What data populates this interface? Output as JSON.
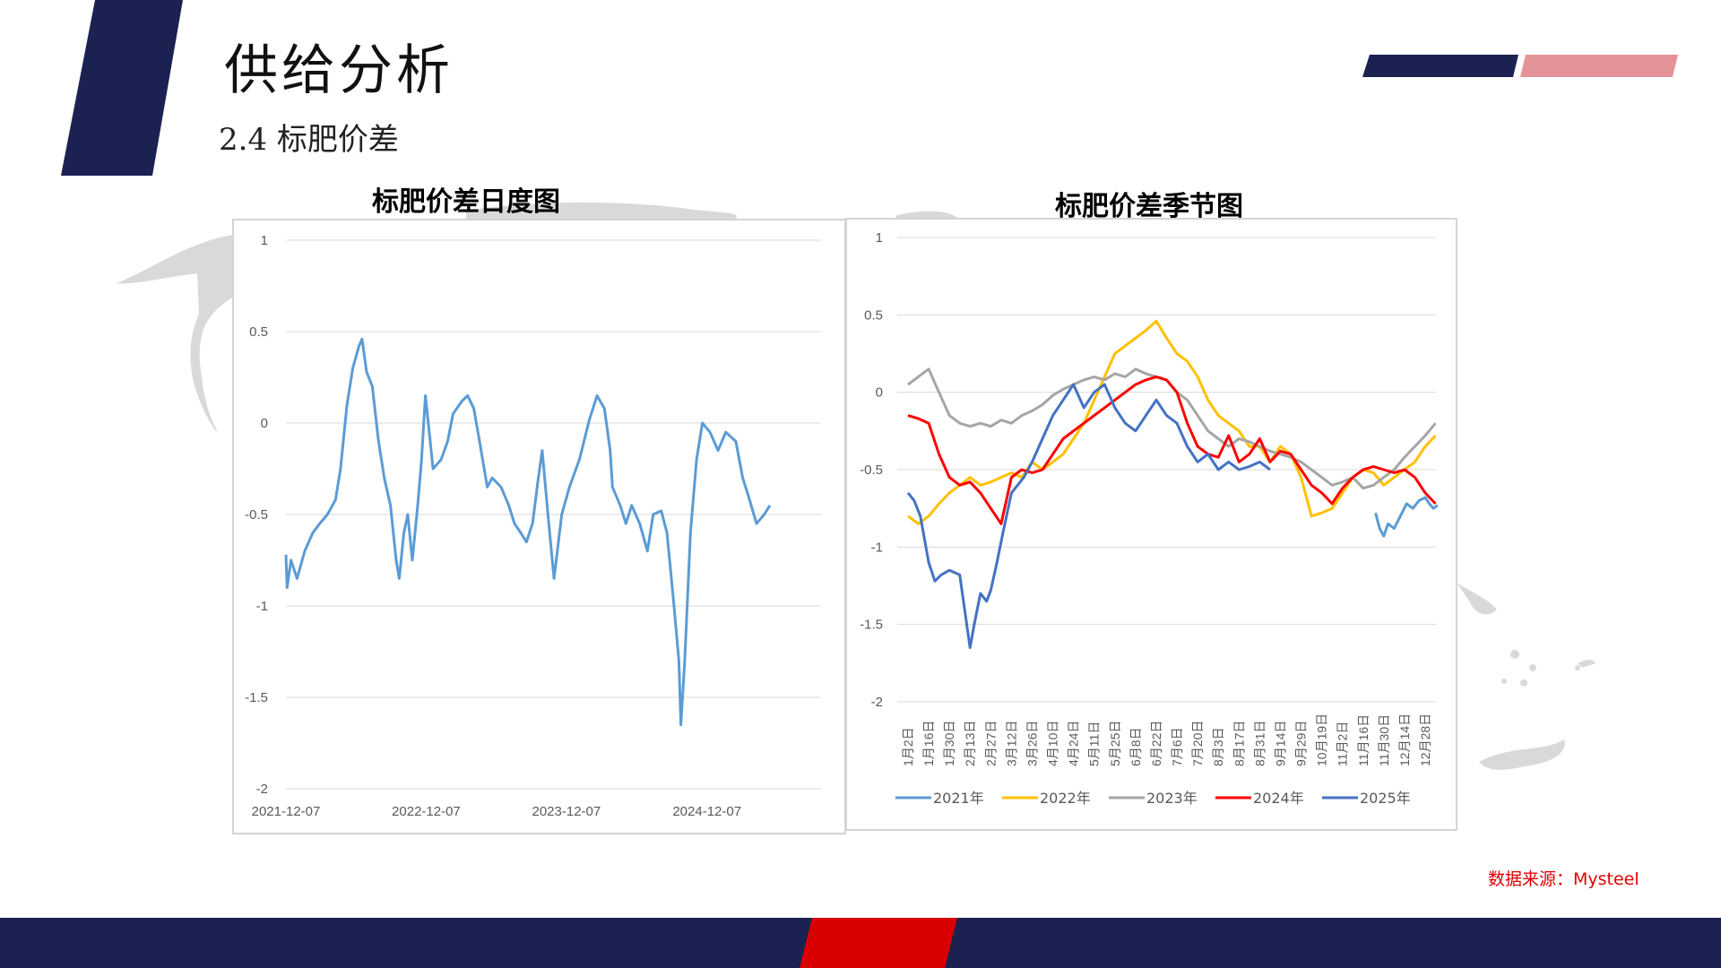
{
  "header": {
    "title": "供给分析",
    "subtitle": "2.4 标肥价差"
  },
  "source": "数据来源：Mysteel",
  "colors": {
    "navy": "#1b2150",
    "pink": "#e49498",
    "red_bar": "#d80000",
    "daily_line": "#5b9bd5",
    "series": [
      "#5b9bd5",
      "#ffc000",
      "#a5a5a5",
      "#ff0000",
      "#4472c4"
    ]
  },
  "chart_data": [
    {
      "type": "line",
      "title": "标肥价差日度图",
      "ylim": [
        -2,
        1
      ],
      "yticks": [
        1,
        0.5,
        0,
        -0.5,
        -1,
        -1.5,
        -2
      ],
      "ytick_labels": [
        "1",
        "0.5",
        "0",
        "-0.5",
        "-1",
        "-1.5",
        "-2"
      ],
      "xlim": [
        "2021-12-07",
        "2025-09-30"
      ],
      "xticks": [
        "2021-12-07",
        "2022-12-07",
        "2023-12-07",
        "2024-12-07"
      ],
      "grid": true,
      "series": [
        {
          "color": "#5b9bd5",
          "points": [
            [
              "2021-12-07",
              -0.72
            ],
            [
              "2021-12-10",
              -0.9
            ],
            [
              "2021-12-20",
              -0.75
            ],
            [
              "2022-01-05",
              -0.85
            ],
            [
              "2022-01-25",
              -0.7
            ],
            [
              "2022-02-15",
              -0.6
            ],
            [
              "2022-03-05",
              -0.55
            ],
            [
              "2022-03-25",
              -0.5
            ],
            [
              "2022-04-15",
              -0.42
            ],
            [
              "2022-04-28",
              -0.25
            ],
            [
              "2022-05-15",
              0.1
            ],
            [
              "2022-05-30",
              0.3
            ],
            [
              "2022-06-15",
              0.42
            ],
            [
              "2022-06-23",
              0.46
            ],
            [
              "2022-07-05",
              0.28
            ],
            [
              "2022-07-20",
              0.2
            ],
            [
              "2022-08-05",
              -0.1
            ],
            [
              "2022-08-20",
              -0.3
            ],
            [
              "2022-09-05",
              -0.45
            ],
            [
              "2022-09-20",
              -0.75
            ],
            [
              "2022-09-28",
              -0.85
            ],
            [
              "2022-10-10",
              -0.6
            ],
            [
              "2022-10-20",
              -0.5
            ],
            [
              "2022-11-01",
              -0.75
            ],
            [
              "2022-11-15",
              -0.45
            ],
            [
              "2022-11-25",
              -0.2
            ],
            [
              "2022-12-05",
              0.15
            ],
            [
              "2022-12-15",
              -0.05
            ],
            [
              "2022-12-25",
              -0.25
            ],
            [
              "2023-01-15",
              -0.2
            ],
            [
              "2023-02-01",
              -0.1
            ],
            [
              "2023-02-15",
              0.05
            ],
            [
              "2023-03-10",
              0.12
            ],
            [
              "2023-03-25",
              0.15
            ],
            [
              "2023-04-10",
              0.08
            ],
            [
              "2023-04-25",
              -0.1
            ],
            [
              "2023-05-15",
              -0.35
            ],
            [
              "2023-05-28",
              -0.3
            ],
            [
              "2023-06-20",
              -0.35
            ],
            [
              "2023-07-10",
              -0.45
            ],
            [
              "2023-07-25",
              -0.55
            ],
            [
              "2023-08-10",
              -0.6
            ],
            [
              "2023-08-25",
              -0.65
            ],
            [
              "2023-09-10",
              -0.55
            ],
            [
              "2023-09-25",
              -0.3
            ],
            [
              "2023-10-05",
              -0.15
            ],
            [
              "2023-10-20",
              -0.5
            ],
            [
              "2023-11-05",
              -0.85
            ],
            [
              "2023-11-25",
              -0.5
            ],
            [
              "2023-12-15",
              -0.35
            ],
            [
              "2024-01-10",
              -0.2
            ],
            [
              "2024-02-05",
              0.02
            ],
            [
              "2024-02-25",
              0.15
            ],
            [
              "2024-03-15",
              0.08
            ],
            [
              "2024-03-30",
              -0.15
            ],
            [
              "2024-04-05",
              -0.35
            ],
            [
              "2024-04-25",
              -0.45
            ],
            [
              "2024-05-10",
              -0.55
            ],
            [
              "2024-05-25",
              -0.45
            ],
            [
              "2024-06-15",
              -0.55
            ],
            [
              "2024-07-05",
              -0.7
            ],
            [
              "2024-07-20",
              -0.5
            ],
            [
              "2024-08-10",
              -0.48
            ],
            [
              "2024-08-25",
              -0.6
            ],
            [
              "2024-09-10",
              -0.95
            ],
            [
              "2024-09-25",
              -1.3
            ],
            [
              "2024-09-30",
              -1.65
            ],
            [
              "2024-10-10",
              -1.3
            ],
            [
              "2024-10-25",
              -0.6
            ],
            [
              "2024-11-10",
              -0.2
            ],
            [
              "2024-11-25",
              0.0
            ],
            [
              "2024-12-15",
              -0.05
            ],
            [
              "2025-01-05",
              -0.15
            ],
            [
              "2025-01-25",
              -0.05
            ],
            [
              "2025-02-20",
              -0.1
            ],
            [
              "2025-03-10",
              -0.3
            ],
            [
              "2025-03-25",
              -0.4
            ],
            [
              "2025-04-15",
              -0.55
            ],
            [
              "2025-05-05",
              -0.5
            ],
            [
              "2025-05-20",
              -0.45
            ]
          ]
        }
      ]
    },
    {
      "type": "line",
      "title": "标肥价差季节图",
      "ylim": [
        -2,
        1
      ],
      "yticks": [
        1,
        0.5,
        0,
        -0.5,
        -1,
        -1.5,
        -2
      ],
      "ytick_labels": [
        "1",
        "0.5",
        "0",
        "-0.5",
        "-1",
        "-1.5",
        "-2"
      ],
      "categories": [
        "1月2日",
        "1月16日",
        "1月30日",
        "2月13日",
        "2月27日",
        "3月12日",
        "3月26日",
        "4月10日",
        "4月24日",
        "5月11日",
        "5月25日",
        "6月8日",
        "6月22日",
        "7月6日",
        "7月20日",
        "8月3日",
        "8月17日",
        "8月31日",
        "9月14日",
        "9月29日",
        "10月19日",
        "11月2日",
        "11月16日",
        "11月30日",
        "12月14日",
        "12月28日"
      ],
      "grid": true,
      "legend_position": "bottom",
      "series": [
        {
          "name": "2021年",
          "color": "#5b9bd5",
          "x": [
            22.6,
            22.8,
            23.0,
            23.2,
            23.5,
            23.8,
            24.1,
            24.4,
            24.7,
            25.0,
            25.2,
            25.4,
            25.6
          ],
          "y": [
            -0.78,
            -0.88,
            -0.93,
            -0.85,
            -0.88,
            -0.8,
            -0.72,
            -0.75,
            -0.7,
            -0.68,
            -0.72,
            -0.75,
            -0.73
          ]
        },
        {
          "name": "2022年",
          "color": "#ffc000",
          "x": [
            0,
            0.5,
            1,
            1.5,
            2,
            2.5,
            3,
            3.5,
            4,
            4.5,
            5,
            5.5,
            6,
            6.5,
            7,
            7.5,
            8,
            8.5,
            9,
            9.5,
            10,
            10.5,
            11,
            11.5,
            12,
            12.5,
            13,
            13.5,
            14,
            14.5,
            15,
            15.5,
            16,
            16.5,
            17,
            17.5,
            18,
            18.5,
            19,
            19.5,
            20,
            20.5,
            21,
            21.5,
            22,
            22.5,
            23,
            23.5,
            24,
            24.5,
            25,
            25.5
          ],
          "y": [
            -0.8,
            -0.85,
            -0.8,
            -0.72,
            -0.65,
            -0.6,
            -0.55,
            -0.6,
            -0.58,
            -0.55,
            -0.52,
            -0.55,
            -0.45,
            -0.5,
            -0.45,
            -0.4,
            -0.3,
            -0.2,
            -0.05,
            0.1,
            0.25,
            0.3,
            0.35,
            0.4,
            0.46,
            0.35,
            0.25,
            0.2,
            0.1,
            -0.05,
            -0.15,
            -0.2,
            -0.25,
            -0.35,
            -0.35,
            -0.45,
            -0.35,
            -0.4,
            -0.55,
            -0.8,
            -0.78,
            -0.75,
            -0.65,
            -0.55,
            -0.5,
            -0.52,
            -0.6,
            -0.55,
            -0.5,
            -0.45,
            -0.35,
            -0.28
          ]
        },
        {
          "name": "2023年",
          "color": "#a5a5a5",
          "x": [
            0,
            0.5,
            1,
            1.5,
            2,
            2.5,
            3,
            3.5,
            4,
            4.5,
            5,
            5.5,
            6,
            6.5,
            7,
            7.5,
            8,
            8.5,
            9,
            9.5,
            10,
            10.5,
            11,
            11.5,
            12,
            12.5,
            13,
            13.5,
            14,
            14.5,
            15,
            15.5,
            16,
            16.5,
            17,
            17.5,
            18,
            18.5,
            19,
            19.5,
            20,
            20.5,
            21,
            21.5,
            22,
            22.5,
            23,
            23.5,
            24,
            24.5,
            25,
            25.5
          ],
          "y": [
            0.05,
            0.1,
            0.15,
            0.0,
            -0.15,
            -0.2,
            -0.22,
            -0.2,
            -0.22,
            -0.18,
            -0.2,
            -0.15,
            -0.12,
            -0.08,
            -0.02,
            0.02,
            0.05,
            0.08,
            0.1,
            0.08,
            0.12,
            0.1,
            0.15,
            0.12,
            0.1,
            0.08,
            0.0,
            -0.05,
            -0.15,
            -0.25,
            -0.3,
            -0.35,
            -0.3,
            -0.32,
            -0.35,
            -0.38,
            -0.4,
            -0.42,
            -0.45,
            -0.5,
            -0.55,
            -0.6,
            -0.58,
            -0.55,
            -0.62,
            -0.6,
            -0.55,
            -0.5,
            -0.42,
            -0.35,
            -0.28,
            -0.2
          ]
        },
        {
          "name": "2024年",
          "color": "#ff0000",
          "x": [
            0,
            0.5,
            1,
            1.5,
            2,
            2.5,
            3,
            3.5,
            4,
            4.5,
            5,
            5.5,
            6,
            6.5,
            7,
            7.5,
            8,
            8.5,
            9,
            9.5,
            10,
            10.5,
            11,
            11.5,
            12,
            12.5,
            13,
            13.5,
            14,
            14.5,
            15,
            15.5,
            16,
            16.5,
            17,
            17.5,
            18,
            18.5,
            19,
            19.5,
            20,
            20.5,
            21,
            21.5,
            22,
            22.5,
            23,
            23.5,
            24,
            24.5,
            25,
            25.5
          ],
          "y": [
            -0.15,
            -0.17,
            -0.2,
            -0.4,
            -0.55,
            -0.6,
            -0.58,
            -0.65,
            -0.75,
            -0.85,
            -0.55,
            -0.5,
            -0.52,
            -0.5,
            -0.4,
            -0.3,
            -0.25,
            -0.2,
            -0.15,
            -0.1,
            -0.05,
            0.0,
            0.05,
            0.08,
            0.1,
            0.08,
            0.0,
            -0.2,
            -0.35,
            -0.4,
            -0.42,
            -0.28,
            -0.45,
            -0.4,
            -0.3,
            -0.45,
            -0.38,
            -0.4,
            -0.5,
            -0.6,
            -0.65,
            -0.72,
            -0.62,
            -0.55,
            -0.5,
            -0.48,
            -0.5,
            -0.52,
            -0.5,
            -0.55,
            -0.65,
            -0.72
          ]
        },
        {
          "name": "2025年",
          "color": "#4472c4",
          "x": [
            0,
            0.3,
            0.6,
            1,
            1.3,
            1.6,
            2,
            2.5,
            3,
            3.2,
            3.5,
            3.8,
            4,
            4.3,
            4.6,
            5,
            5.3,
            5.6,
            6,
            6.5,
            7,
            7.5,
            8,
            8.5,
            9,
            9.5,
            10,
            10.5,
            11,
            11.5,
            12,
            12.5,
            13,
            13.5,
            14,
            14.5,
            15,
            15.5,
            16,
            16.5,
            17,
            17.5
          ],
          "y": [
            -0.65,
            -0.7,
            -0.8,
            -1.1,
            -1.22,
            -1.18,
            -1.15,
            -1.18,
            -1.65,
            -1.5,
            -1.3,
            -1.35,
            -1.28,
            -1.1,
            -0.9,
            -0.65,
            -0.6,
            -0.55,
            -0.45,
            -0.3,
            -0.15,
            -0.05,
            0.05,
            -0.1,
            0.0,
            0.05,
            -0.1,
            -0.2,
            -0.25,
            -0.15,
            -0.05,
            -0.15,
            -0.2,
            -0.35,
            -0.45,
            -0.4,
            -0.5,
            -0.45,
            -0.5,
            -0.48,
            -0.45,
            -0.5
          ]
        }
      ]
    }
  ]
}
